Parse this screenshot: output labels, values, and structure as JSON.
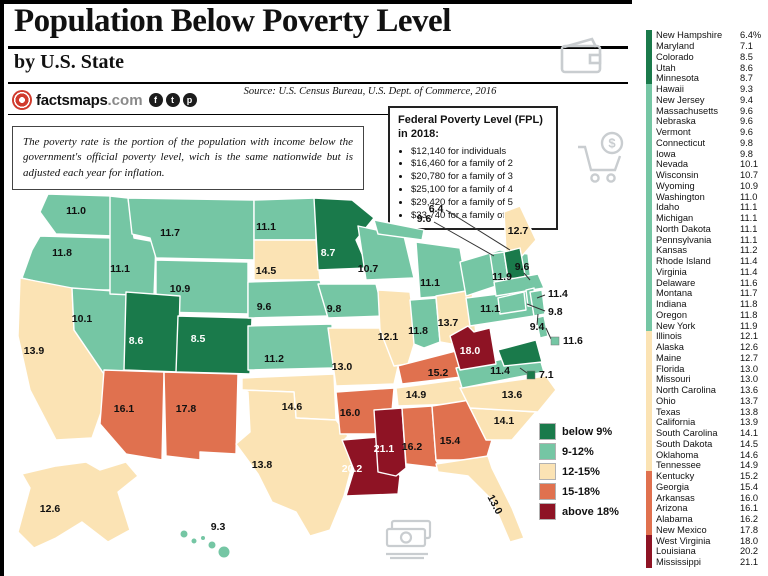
{
  "header": {
    "title": "Population Below Poverty Level",
    "subtitle": "by U.S. State",
    "source": "Source: U.S. Census Bureau, U.S. Dept. of Commerce, 2016",
    "brand": {
      "site": "factsmaps",
      "suffix": ".com",
      "socials": [
        {
          "glyph": "f",
          "name": "facebook-icon"
        },
        {
          "glyph": "t",
          "name": "twitter-icon"
        },
        {
          "glyph": "p",
          "name": "pinterest-icon"
        }
      ]
    }
  },
  "intro": "The poverty rate is the portion of the population with income below the government's official poverty level, wich is the same nationwide but is adjusted each year for inflation.",
  "fpl": {
    "title": "Federal Poverty Level (FPL) in 2018:",
    "items": [
      "$12,140 for individuals",
      "$16,460 for a family of 2",
      "$20,780 for a family of 3",
      "$25,100 for a family of 4",
      "$29,420 for a family of 5",
      "$33,740 for a family of 6"
    ]
  },
  "legend": [
    {
      "label": "below 9%",
      "color": "#1a7a4b"
    },
    {
      "label": "9-12%",
      "color": "#75c6a4"
    },
    {
      "label": "12-15%",
      "color": "#fbe3b4"
    },
    {
      "label": "15-18%",
      "color": "#e0714f"
    },
    {
      "label": "above 18%",
      "color": "#8e1324"
    }
  ],
  "states": [
    {
      "name": "New Hampshire",
      "abbr": "NH",
      "value": "6.4",
      "list": "6.4%",
      "g": 0
    },
    {
      "name": "Maryland",
      "abbr": "MD",
      "value": "7.1",
      "list": "7.1",
      "g": 0
    },
    {
      "name": "Colorado",
      "abbr": "CO",
      "value": "8.5",
      "list": "8.5",
      "g": 0
    },
    {
      "name": "Utah",
      "abbr": "UT",
      "value": "8.6",
      "list": "8.6",
      "g": 0
    },
    {
      "name": "Minnesota",
      "abbr": "MN",
      "value": "8.7",
      "list": "8.7",
      "g": 0
    },
    {
      "name": "Hawaii",
      "abbr": "HI",
      "value": "9.3",
      "list": "9.3",
      "g": 1
    },
    {
      "name": "New Jersey",
      "abbr": "NJ",
      "value": "9.4",
      "list": "9.4",
      "g": 1
    },
    {
      "name": "Massachusetts",
      "abbr": "MA",
      "value": "9.6",
      "list": "9.6",
      "g": 1
    },
    {
      "name": "Nebraska",
      "abbr": "NE",
      "value": "9.6",
      "list": "9.6",
      "g": 1
    },
    {
      "name": "Vermont",
      "abbr": "VT",
      "value": "9.6",
      "list": "9.6",
      "g": 1
    },
    {
      "name": "Connecticut",
      "abbr": "CT",
      "value": "9.8",
      "list": "9.8",
      "g": 1
    },
    {
      "name": "Iowa",
      "abbr": "IA",
      "value": "9.8",
      "list": "9.8",
      "g": 1
    },
    {
      "name": "Nevada",
      "abbr": "NV",
      "value": "10.1",
      "list": "10.1",
      "g": 1
    },
    {
      "name": "Wisconsin",
      "abbr": "WI",
      "value": "10.7",
      "list": "10.7",
      "g": 1
    },
    {
      "name": "Wyoming",
      "abbr": "WY",
      "value": "10.9",
      "list": "10.9",
      "g": 1
    },
    {
      "name": "Washington",
      "abbr": "WA",
      "value": "11.0",
      "list": "11.0",
      "g": 1
    },
    {
      "name": "Idaho",
      "abbr": "ID",
      "value": "11.1",
      "list": "11.1",
      "g": 1
    },
    {
      "name": "Michigan",
      "abbr": "MI",
      "value": "11.1",
      "list": "11.1",
      "g": 1
    },
    {
      "name": "North Dakota",
      "abbr": "ND",
      "value": "11.1",
      "list": "11.1",
      "g": 1
    },
    {
      "name": "Pennsylvania",
      "abbr": "PA",
      "value": "11.1",
      "list": "11.1",
      "g": 1
    },
    {
      "name": "Kansas",
      "abbr": "KS",
      "value": "11.2",
      "list": "11.2",
      "g": 1
    },
    {
      "name": "Rhode Island",
      "abbr": "RI",
      "value": "11.4",
      "list": "11.4",
      "g": 1
    },
    {
      "name": "Virginia",
      "abbr": "VA",
      "value": "11.4",
      "list": "11.4",
      "g": 1
    },
    {
      "name": "Delaware",
      "abbr": "DE",
      "value": "11.6",
      "list": "11.6",
      "g": 1
    },
    {
      "name": "Montana",
      "abbr": "MT",
      "value": "11.7",
      "list": "11.7",
      "g": 1
    },
    {
      "name": "Indiana",
      "abbr": "IN",
      "value": "11.8",
      "list": "11.8",
      "g": 1
    },
    {
      "name": "Oregon",
      "abbr": "OR",
      "value": "11.8",
      "list": "11.8",
      "g": 1
    },
    {
      "name": "New York",
      "abbr": "NY",
      "value": "11.9",
      "list": "11.9",
      "g": 1
    },
    {
      "name": "Illinois",
      "abbr": "IL",
      "value": "12.1",
      "list": "12.1",
      "g": 2
    },
    {
      "name": "Alaska",
      "abbr": "AK",
      "value": "12.6",
      "list": "12.6",
      "g": 2
    },
    {
      "name": "Maine",
      "abbr": "ME",
      "value": "12.7",
      "list": "12.7",
      "g": 2
    },
    {
      "name": "Florida",
      "abbr": "FL",
      "value": "13.0",
      "list": "13.0",
      "g": 2
    },
    {
      "name": "Missouri",
      "abbr": "MO",
      "value": "13.0",
      "list": "13.0",
      "g": 2
    },
    {
      "name": "North Carolina",
      "abbr": "NC",
      "value": "13.6",
      "list": "13.6",
      "g": 2
    },
    {
      "name": "Ohio",
      "abbr": "OH",
      "value": "13.7",
      "list": "13.7",
      "g": 2
    },
    {
      "name": "Texas",
      "abbr": "TX",
      "value": "13.8",
      "list": "13.8",
      "g": 2
    },
    {
      "name": "California",
      "abbr": "CA",
      "value": "13.9",
      "list": "13.9",
      "g": 2
    },
    {
      "name": "South Carolina",
      "abbr": "SC",
      "value": "14.1",
      "list": "14.1",
      "g": 2
    },
    {
      "name": "South Dakota",
      "abbr": "SD",
      "value": "14.5",
      "list": "14.5",
      "g": 2
    },
    {
      "name": "Oklahoma",
      "abbr": "OK",
      "value": "14.6",
      "list": "14.6",
      "g": 2
    },
    {
      "name": "Tennessee",
      "abbr": "TN",
      "value": "14.9",
      "list": "14.9",
      "g": 2
    },
    {
      "name": "Kentucky",
      "abbr": "KY",
      "value": "15.2",
      "list": "15.2",
      "g": 3
    },
    {
      "name": "Georgia",
      "abbr": "GA",
      "value": "15.4",
      "list": "15.4",
      "g": 3
    },
    {
      "name": "Arkansas",
      "abbr": "AR",
      "value": "16.0",
      "list": "16.0",
      "g": 3
    },
    {
      "name": "Arizona",
      "abbr": "AZ",
      "value": "16.1",
      "list": "16.1",
      "g": 3
    },
    {
      "name": "Alabama",
      "abbr": "AL",
      "value": "16.2",
      "list": "16.2",
      "g": 3
    },
    {
      "name": "New Mexico",
      "abbr": "NM",
      "value": "17.8",
      "list": "17.8",
      "g": 3
    },
    {
      "name": "West Virginia",
      "abbr": "WV",
      "value": "18.0",
      "list": "18.0",
      "g": 4
    },
    {
      "name": "Louisiana",
      "abbr": "LA",
      "value": "20.2",
      "list": "20.2",
      "g": 4
    },
    {
      "name": "Mississippi",
      "abbr": "MS",
      "value": "21.1",
      "list": "21.1",
      "g": 4
    }
  ],
  "chart_data": {
    "type": "choropleth",
    "title": "Population Below Poverty Level by U.S. State",
    "unit": "% of population below poverty level",
    "source": "U.S. Census Bureau, U.S. Dept. of Commerce, 2016",
    "bins": [
      "below 9%",
      "9-12%",
      "12-15%",
      "15-18%",
      "above 18%"
    ],
    "categories": [
      "New Hampshire",
      "Maryland",
      "Colorado",
      "Utah",
      "Minnesota",
      "Hawaii",
      "New Jersey",
      "Massachusetts",
      "Nebraska",
      "Vermont",
      "Connecticut",
      "Iowa",
      "Nevada",
      "Wisconsin",
      "Wyoming",
      "Washington",
      "Idaho",
      "Michigan",
      "North Dakota",
      "Pennsylvania",
      "Kansas",
      "Rhode Island",
      "Virginia",
      "Delaware",
      "Montana",
      "Indiana",
      "Oregon",
      "New York",
      "Illinois",
      "Alaska",
      "Maine",
      "Florida",
      "Missouri",
      "North Carolina",
      "Ohio",
      "Texas",
      "California",
      "South Carolina",
      "South Dakota",
      "Oklahoma",
      "Tennessee",
      "Kentucky",
      "Georgia",
      "Arkansas",
      "Arizona",
      "Alabama",
      "New Mexico",
      "West Virginia",
      "Louisiana",
      "Mississippi"
    ],
    "values": [
      6.4,
      7.1,
      8.5,
      8.6,
      8.7,
      9.3,
      9.4,
      9.6,
      9.6,
      9.6,
      9.8,
      9.8,
      10.1,
      10.7,
      10.9,
      11.0,
      11.1,
      11.1,
      11.1,
      11.1,
      11.2,
      11.4,
      11.4,
      11.6,
      11.7,
      11.8,
      11.8,
      11.9,
      12.1,
      12.6,
      12.7,
      13.0,
      13.0,
      13.6,
      13.7,
      13.8,
      13.9,
      14.1,
      14.5,
      14.6,
      14.9,
      15.2,
      15.4,
      16.0,
      16.1,
      16.2,
      17.8,
      18.0,
      20.2,
      21.1
    ]
  }
}
